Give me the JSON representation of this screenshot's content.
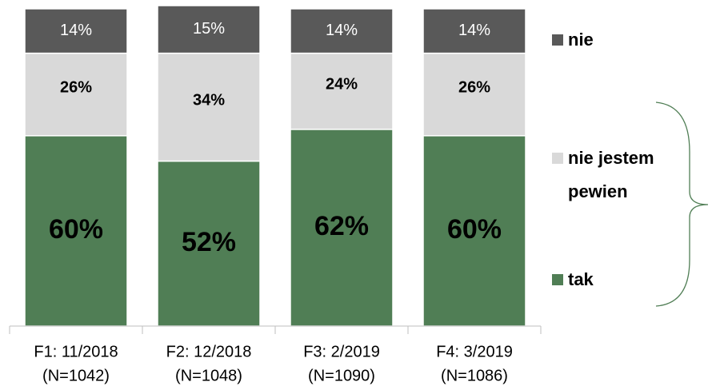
{
  "chart_data": {
    "type": "stacked_bar",
    "categories": [
      [
        "F1: 11/2018",
        "(N=1042)"
      ],
      [
        "F2: 12/2018",
        "(N=1048)"
      ],
      [
        "F3: 2/2019",
        "(N=1090)"
      ],
      [
        "F4: 3/2019",
        "(N=1086)"
      ]
    ],
    "series": [
      {
        "name": "tak",
        "color": "#507e55",
        "values": [
          60,
          52,
          62,
          60
        ],
        "value_labels": [
          "60%",
          "52%",
          "62%",
          "60%"
        ]
      },
      {
        "name": "nie jestem pewien",
        "color": "#d9d9d9",
        "values": [
          26,
          34,
          24,
          26
        ],
        "value_labels": [
          "26%",
          "34%",
          "24%",
          "26%"
        ]
      },
      {
        "name": "nie",
        "color": "#595959",
        "values": [
          14,
          15,
          14,
          14
        ],
        "value_labels": [
          "14%",
          "15%",
          "14%",
          "14%"
        ]
      }
    ],
    "ylim": [
      0,
      100
    ]
  }
}
